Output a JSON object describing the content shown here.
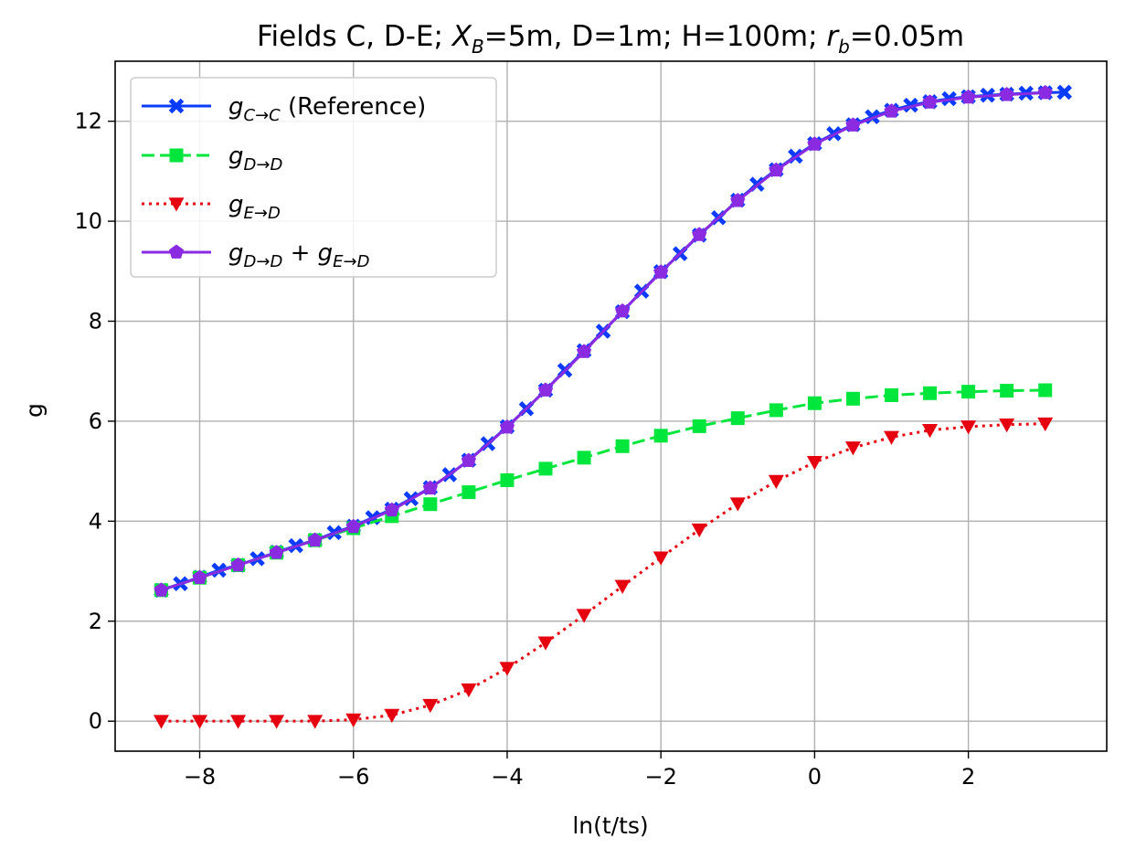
{
  "chart_data": {
    "type": "line",
    "title": "Fields C, D-E; X_B=5m, D=1m; H=100m; r_b=0.05m",
    "title_parts": {
      "p1": "Fields C, D-E; ",
      "xb_sym": "X",
      "xb_sub": "B",
      "p2": "=5m, D=1m; H=100m; ",
      "rb_sym": "r",
      "rb_sub": "b",
      "p3": "=0.05m"
    },
    "xlabel": "ln(t/ts)",
    "ylabel": "g",
    "xlim": [
      -9.1,
      3.8
    ],
    "ylim": [
      -0.6,
      13.2
    ],
    "xticks": [
      -8,
      -6,
      -4,
      -2,
      0,
      2
    ],
    "xtick_labels": [
      "−8",
      "−6",
      "−4",
      "−2",
      "0",
      "2"
    ],
    "yticks": [
      0,
      2,
      4,
      6,
      8,
      10,
      12
    ],
    "ytick_labels": [
      "0",
      "2",
      "4",
      "6",
      "8",
      "10",
      "12"
    ],
    "grid": true,
    "legend_position": "top-left",
    "series": [
      {
        "name": "g_C→C (Reference)",
        "legend": {
          "sym": "g",
          "sub": "C→C",
          "rest": " (Reference)"
        },
        "color": "#0a3cff",
        "line_style": "solid",
        "marker": "x",
        "x": [
          -8.5,
          -8.25,
          -8.0,
          -7.75,
          -7.5,
          -7.25,
          -7.0,
          -6.75,
          -6.5,
          -6.25,
          -6.0,
          -5.75,
          -5.5,
          -5.25,
          -5.0,
          -4.75,
          -4.5,
          -4.25,
          -4.0,
          -3.75,
          -3.5,
          -3.25,
          -3.0,
          -2.75,
          -2.5,
          -2.25,
          -2.0,
          -1.75,
          -1.5,
          -1.25,
          -1.0,
          -0.75,
          -0.5,
          -0.25,
          0.0,
          0.25,
          0.5,
          0.75,
          1.0,
          1.25,
          1.5,
          1.75,
          2.0,
          2.25,
          2.5,
          2.75,
          3.0,
          3.25
        ],
        "y": [
          2.62,
          2.75,
          2.88,
          3.02,
          3.12,
          3.25,
          3.38,
          3.51,
          3.62,
          3.77,
          3.9,
          4.07,
          4.24,
          4.45,
          4.67,
          4.93,
          5.22,
          5.55,
          5.89,
          6.25,
          6.62,
          7.02,
          7.41,
          7.8,
          8.19,
          8.6,
          8.99,
          9.35,
          9.72,
          10.07,
          10.42,
          10.74,
          11.03,
          11.3,
          11.55,
          11.75,
          11.93,
          12.09,
          12.22,
          12.32,
          12.39,
          12.45,
          12.49,
          12.52,
          12.54,
          12.56,
          12.57,
          12.58
        ]
      },
      {
        "name": "g_D→D",
        "legend": {
          "sym": "g",
          "sub": "D→D",
          "rest": ""
        },
        "color": "#00e63c",
        "line_style": "dashed",
        "marker": "square",
        "x": [
          -8.5,
          -8.0,
          -7.5,
          -7.0,
          -6.5,
          -6.0,
          -5.5,
          -5.0,
          -4.5,
          -4.0,
          -3.5,
          -3.0,
          -2.5,
          -2.0,
          -1.5,
          -1.0,
          -0.5,
          0.0,
          0.5,
          1.0,
          1.5,
          2.0,
          2.5,
          3.0
        ],
        "y": [
          2.62,
          2.87,
          3.12,
          3.37,
          3.62,
          3.86,
          4.1,
          4.34,
          4.58,
          4.82,
          5.05,
          5.27,
          5.5,
          5.71,
          5.9,
          6.06,
          6.22,
          6.36,
          6.45,
          6.52,
          6.56,
          6.59,
          6.61,
          6.62
        ]
      },
      {
        "name": "g_E→D",
        "legend": {
          "sym": "g",
          "sub": "E→D",
          "rest": ""
        },
        "color": "#e6000f",
        "line_style": "dotted",
        "marker": "triangle-down",
        "x": [
          -8.5,
          -8.0,
          -7.5,
          -7.0,
          -6.5,
          -6.0,
          -5.5,
          -5.0,
          -4.5,
          -4.0,
          -3.5,
          -3.0,
          -2.5,
          -2.0,
          -1.5,
          -1.0,
          -0.5,
          0.0,
          0.5,
          1.0,
          1.5,
          2.0,
          2.5,
          3.0
        ],
        "y": [
          0.0,
          0.0,
          0.0,
          0.0,
          0.0,
          0.03,
          0.12,
          0.32,
          0.63,
          1.06,
          1.57,
          2.12,
          2.7,
          3.27,
          3.83,
          4.35,
          4.8,
          5.18,
          5.47,
          5.68,
          5.82,
          5.89,
          5.93,
          5.95
        ]
      },
      {
        "name": "g_D→D + g_E→D",
        "legend": {
          "sym": "g",
          "sub": "D→D",
          "rest": " + ",
          "sym2": "g",
          "sub2": "E→D"
        },
        "color": "#8a2be2",
        "line_style": "solid",
        "marker": "pentagon",
        "x": [
          -8.5,
          -8.0,
          -7.5,
          -7.0,
          -6.5,
          -6.0,
          -5.5,
          -5.0,
          -4.5,
          -4.0,
          -3.5,
          -3.0,
          -2.5,
          -2.0,
          -1.5,
          -1.0,
          -0.5,
          0.0,
          0.5,
          1.0,
          1.5,
          2.0,
          2.5,
          3.0
        ],
        "y": [
          2.62,
          2.87,
          3.12,
          3.37,
          3.62,
          3.89,
          4.22,
          4.66,
          5.21,
          5.88,
          6.62,
          7.39,
          8.2,
          8.98,
          9.73,
          10.41,
          11.02,
          11.54,
          11.92,
          12.2,
          12.38,
          12.48,
          12.53,
          12.57
        ]
      }
    ]
  }
}
